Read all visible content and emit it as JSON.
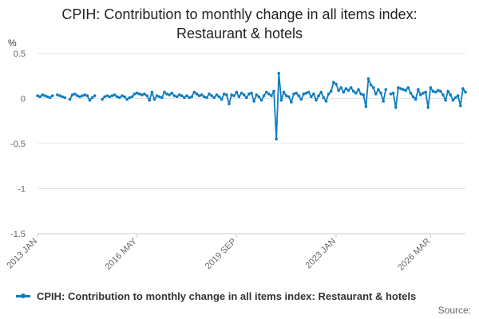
{
  "chart_data": {
    "type": "line",
    "title": "CPIH: Contribution to monthly change in all items index: Restaurant & hotels",
    "title_lines": [
      "CPIH: Contribution to monthly change in all items index:",
      "Restaurant & hotels"
    ],
    "ylabel": "%",
    "ylim": [
      -1.5,
      0.5
    ],
    "yticks": [
      0.5,
      0,
      -0.5,
      -1,
      -1.5
    ],
    "ytick_labels": [
      "0.5",
      "0",
      "-0.5",
      "-1",
      "-1.5"
    ],
    "xtick_labels": [
      "2013 JAN",
      "2016 MAY",
      "2019 SEP",
      "2023 JAN",
      "2026 MAR"
    ],
    "xtick_index": [
      0,
      40,
      80,
      120,
      158
    ],
    "start": "2013 JAN",
    "grid": true,
    "legend_position": "bottom",
    "colors": {
      "series": "#0f7dc0",
      "grid": "#e5e5e5",
      "axis": "#cccccc"
    },
    "series": [
      {
        "name": "CPIH: Contribution to monthly change in all items index: Restaurant & hotels",
        "values": [
          0.03,
          0.02,
          0.04,
          0.03,
          0.02,
          0.01,
          0.03,
          null,
          0.04,
          0.03,
          0.02,
          0.01,
          null,
          -0.01,
          0.04,
          0.05,
          0.03,
          0.02,
          0.03,
          0.04,
          0.03,
          -0.02,
          0.01,
          0.03,
          null,
          null,
          -0.01,
          0.02,
          0.03,
          0.02,
          0.03,
          0.04,
          0.02,
          0.01,
          0.03,
          0.02,
          -0.01,
          0.01,
          0.02,
          0.05,
          0.06,
          0.05,
          0.04,
          0.05,
          0.03,
          -0.02,
          0.07,
          -0.01,
          0.03,
          0.02,
          0.01,
          0.07,
          0.05,
          0.04,
          0.06,
          0.03,
          0.02,
          0.04,
          0.03,
          0.01,
          0.03,
          0.01,
          0.02,
          0.07,
          0.05,
          0.03,
          0.04,
          0.02,
          0.01,
          0.05,
          0.03,
          0.01,
          0.04,
          0.02,
          -0.01,
          0.05,
          0.04,
          -0.06,
          0.04,
          0.03,
          0.07,
          0.02,
          0.06,
          0.04,
          0.01,
          0.05,
          0.06,
          -0.03,
          0.04,
          0.02,
          -0.02,
          0.03,
          0.07,
          0.05,
          0.03,
          0.08,
          -0.45,
          0.28,
          -0.02,
          0.07,
          0.03,
          0.02,
          -0.04,
          0.05,
          0.06,
          0.03,
          -0.01,
          0.05,
          0.06,
          0.07,
          0.02,
          0.05,
          -0.02,
          0.03,
          0.07,
          0.01,
          -0.03,
          0.05,
          0.08,
          0.18,
          0.16,
          0.09,
          0.12,
          0.07,
          0.11,
          0.09,
          0.12,
          0.08,
          0.06,
          0.1,
          0.05,
          0.04,
          -0.09,
          0.22,
          0.15,
          0.12,
          0.05,
          0.1,
          0.06,
          -0.03,
          0.1,
          null,
          0.05,
          0.06,
          -0.1,
          0.12,
          0.11,
          0.1,
          0.09,
          0.12,
          0.06,
          0.02,
          -0.01,
          0.1,
          0.04,
          0.06,
          0.07,
          -0.1,
          0.12,
          0.08,
          0.07,
          0.09,
          0.08,
          0.04,
          -0.02,
          0.08,
          0.04,
          -0.02,
          0.01,
          0.03,
          -0.08,
          0.11,
          0.07
        ]
      }
    ]
  },
  "footer": {
    "source_label": "Source:"
  }
}
